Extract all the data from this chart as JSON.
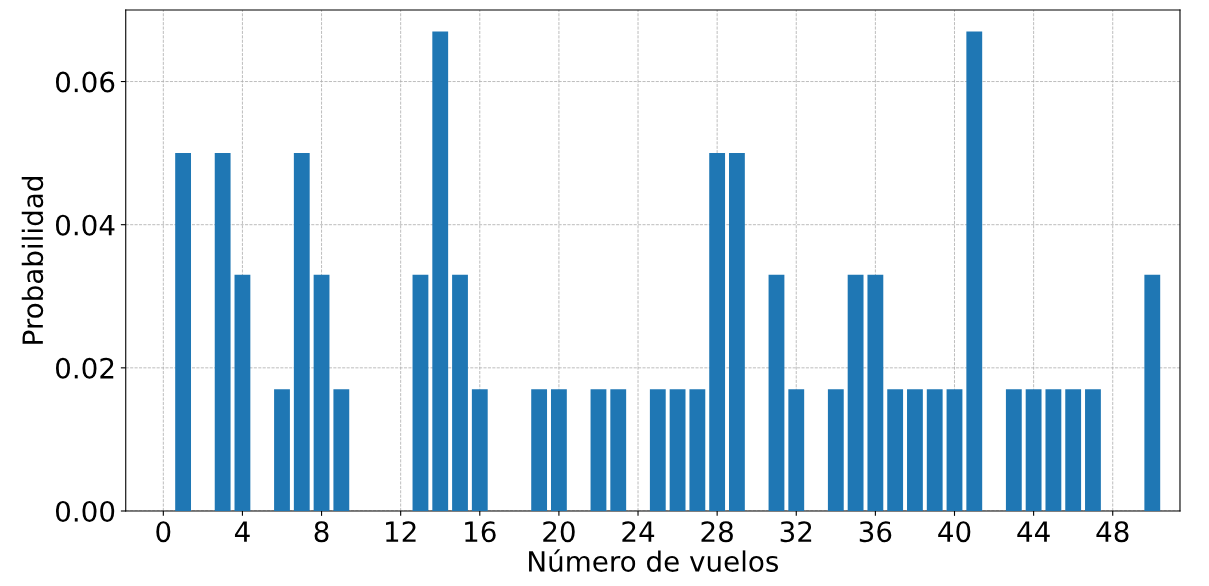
{
  "chart_data": {
    "type": "bar",
    "xlabel": "Número de vuelos",
    "ylabel": "Probabilidad",
    "x": [
      1,
      3,
      4,
      6,
      7,
      8,
      9,
      13,
      14,
      15,
      16,
      19,
      20,
      22,
      23,
      25,
      26,
      27,
      28,
      29,
      31,
      32,
      34,
      35,
      36,
      37,
      38,
      39,
      40,
      41,
      43,
      44,
      45,
      46,
      47,
      50
    ],
    "values": [
      0.05,
      0.05,
      0.033,
      0.017,
      0.05,
      0.033,
      0.017,
      0.033,
      0.067,
      0.033,
      0.017,
      0.017,
      0.017,
      0.017,
      0.017,
      0.017,
      0.017,
      0.017,
      0.05,
      0.05,
      0.033,
      0.017,
      0.017,
      0.033,
      0.033,
      0.017,
      0.017,
      0.017,
      0.017,
      0.067,
      0.017,
      0.017,
      0.017,
      0.017,
      0.017,
      0.033
    ],
    "color": "#1f77b4",
    "xlim": [
      -1.9,
      51.4
    ],
    "xticks": [
      0,
      4,
      8,
      12,
      16,
      20,
      24,
      28,
      32,
      36,
      40,
      44,
      48
    ],
    "ylim": [
      0,
      0.07
    ],
    "yticks": [
      {
        "value": 0,
        "label": "0.00"
      },
      {
        "value": 0.02,
        "label": "0.02"
      },
      {
        "value": 0.04,
        "label": "0.04"
      },
      {
        "value": 0.06,
        "label": "0.06"
      }
    ],
    "grid": true
  }
}
